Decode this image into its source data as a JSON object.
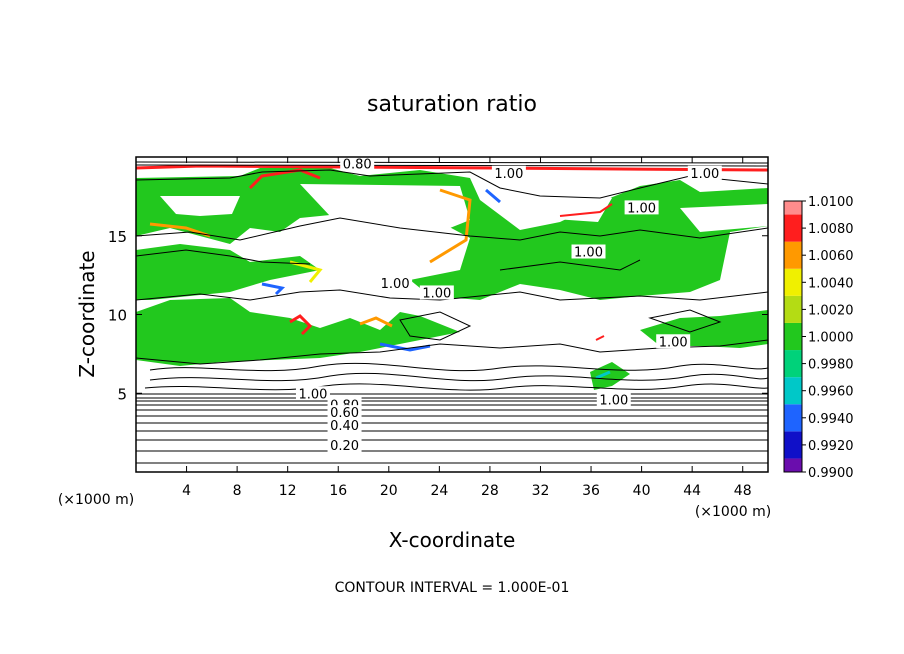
{
  "chart_data": {
    "type": "heatmap",
    "title": "saturation ratio",
    "xlabel": "X-coordinate",
    "ylabel": "Z-coordinate",
    "x_unit": "(×1000 m)",
    "y_unit": "(×1000 m)",
    "xlim": [
      0,
      50
    ],
    "ylim": [
      0,
      20
    ],
    "x_ticks": [
      4,
      8,
      12,
      16,
      20,
      24,
      28,
      32,
      36,
      40,
      44,
      48
    ],
    "y_ticks": [
      5,
      10,
      15
    ],
    "footer": "CONTOUR INTERVAL = 1.000E-01",
    "colorbar": {
      "levels": [
        "0.9900",
        "0.9920",
        "0.9940",
        "0.9960",
        "0.9980",
        "1.0000",
        "1.0020",
        "1.0040",
        "1.0060",
        "1.0080",
        "1.0100"
      ],
      "colors": [
        "#6a0dad",
        "#1010c8",
        "#1e64ff",
        "#00c8c8",
        "#00d27a",
        "#22c81e",
        "#b4dc14",
        "#f0f000",
        "#ff9900",
        "#ff1e1e",
        "#ff8c8c"
      ]
    },
    "contour_labels": [
      {
        "text": "0.80",
        "x": 17.5,
        "y": 19.6
      },
      {
        "text": "1.00",
        "x": 29.5,
        "y": 19.0
      },
      {
        "text": "1.00",
        "x": 45.0,
        "y": 19.0
      },
      {
        "text": "1.00",
        "x": 40.0,
        "y": 16.8
      },
      {
        "text": "1.00",
        "x": 35.8,
        "y": 14.0
      },
      {
        "text": "1.00",
        "x": 20.5,
        "y": 12.0
      },
      {
        "text": "1.00",
        "x": 23.8,
        "y": 11.4
      },
      {
        "text": "1.00",
        "x": 42.5,
        "y": 8.3
      },
      {
        "text": "1.00",
        "x": 14.0,
        "y": 5.0
      },
      {
        "text": "1.00",
        "x": 37.8,
        "y": 4.6
      },
      {
        "text": "0.80",
        "x": 16.5,
        "y": 4.3
      },
      {
        "text": "0.60",
        "x": 16.5,
        "y": 3.8
      },
      {
        "text": "0.40",
        "x": 16.5,
        "y": 3.0
      },
      {
        "text": "0.20",
        "x": 16.5,
        "y": 1.7
      }
    ]
  }
}
